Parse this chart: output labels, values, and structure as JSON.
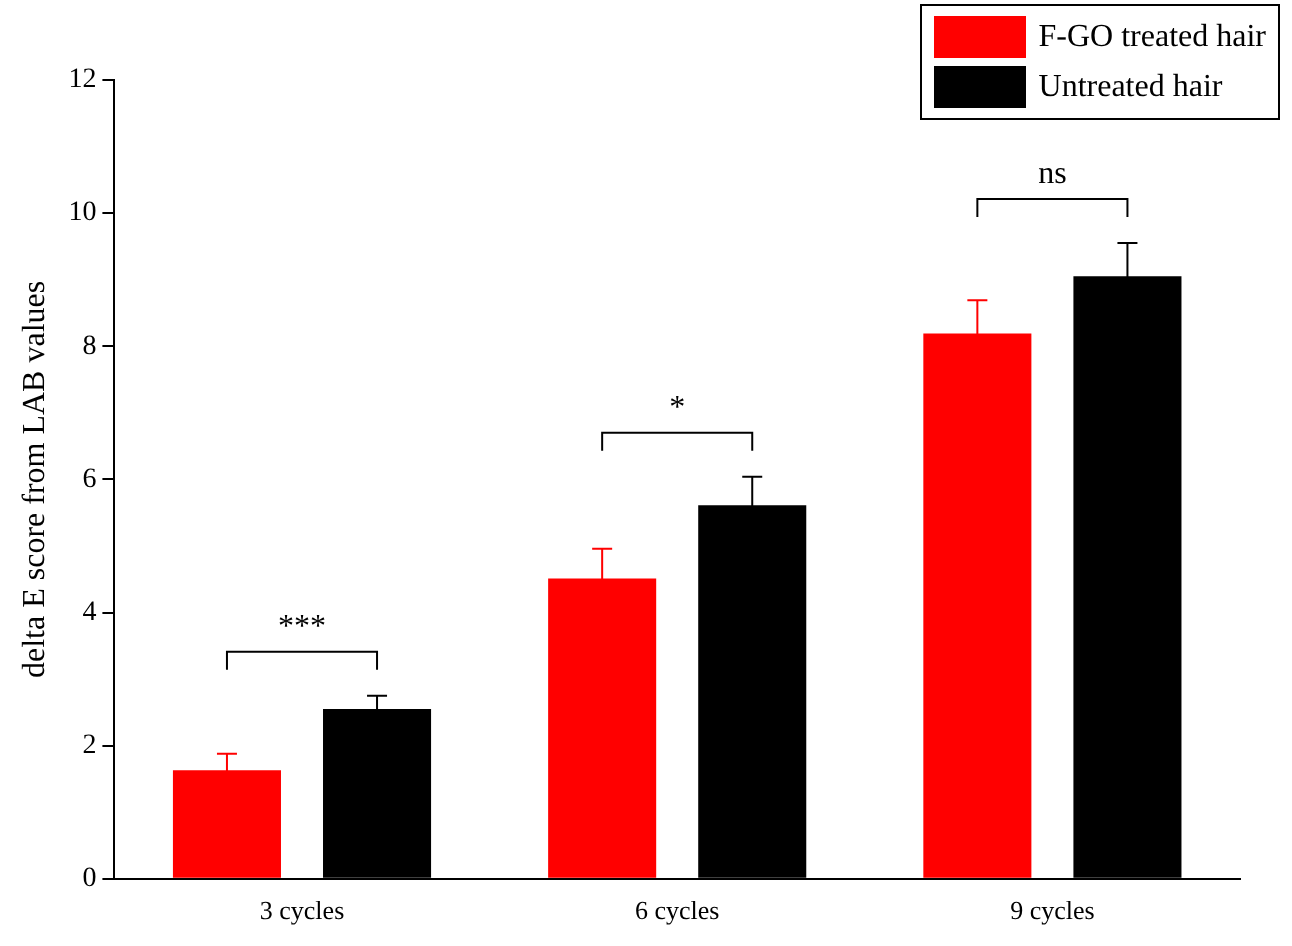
{
  "chart_data": {
    "type": "bar",
    "ylabel": "delta E score from LAB values",
    "categories": [
      "3 cycles",
      "6 cycles",
      "9 cycles"
    ],
    "series": [
      {
        "name": "F-GO treated hair",
        "color": "#ff0000",
        "values": [
          1.63,
          4.51,
          8.19
        ],
        "errors": [
          0.25,
          0.45,
          0.5
        ]
      },
      {
        "name": "Untreated hair",
        "color": "#000000",
        "values": [
          2.55,
          5.61,
          9.05
        ],
        "errors": [
          0.2,
          0.43,
          0.5
        ]
      }
    ],
    "ylim": [
      0,
      12
    ],
    "yticks": [
      0,
      2,
      4,
      6,
      8,
      10,
      12
    ],
    "grid": false,
    "legend": "top right",
    "annotations": [
      "***",
      "*",
      "ns"
    ]
  }
}
